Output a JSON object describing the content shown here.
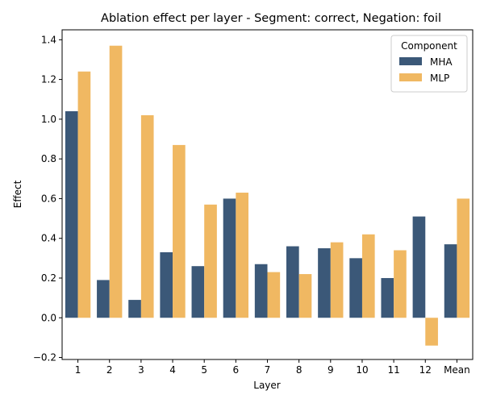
{
  "chart_data": {
    "type": "bar",
    "title": "Ablation effect per layer - Segment: correct, Negation: foil",
    "xlabel": "Layer",
    "ylabel": "Effect",
    "categories": [
      "1",
      "2",
      "3",
      "4",
      "5",
      "6",
      "7",
      "8",
      "9",
      "10",
      "11",
      "12",
      "Mean"
    ],
    "series": [
      {
        "name": "MHA",
        "color": "#3b5878",
        "values": [
          1.04,
          0.19,
          0.09,
          0.33,
          0.26,
          0.6,
          0.27,
          0.36,
          0.35,
          0.3,
          0.2,
          0.51,
          0.37
        ]
      },
      {
        "name": "MLP",
        "color": "#f0b862",
        "values": [
          1.24,
          1.37,
          1.02,
          0.87,
          0.57,
          0.63,
          0.23,
          0.22,
          0.38,
          0.42,
          0.34,
          -0.14,
          0.6
        ]
      }
    ],
    "ylim": [
      -0.21,
      1.45
    ],
    "yticks": [
      -0.2,
      0.0,
      0.2,
      0.4,
      0.6,
      0.8,
      1.0,
      1.2,
      1.4
    ],
    "ytick_labels": [
      "−0.2",
      "0.0",
      "0.2",
      "0.4",
      "0.6",
      "0.8",
      "1.0",
      "1.2",
      "1.4"
    ],
    "grid": false,
    "legend": {
      "title": "Component",
      "placement": "top-right"
    }
  }
}
